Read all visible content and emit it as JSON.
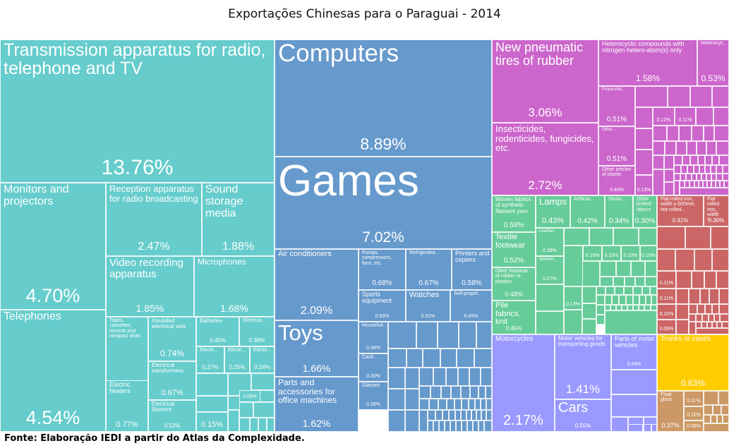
{
  "chart_data": {
    "type": "treemap",
    "title": "Exportações Chinesas para o Paraguai - 2014",
    "source": "Fonte: Elaboração IEDI a partir do Atlas da Complexidade.",
    "unit": "% of total exports",
    "colors": {
      "machinery": "#66cccc",
      "electronics": "#6699cc",
      "chemicals": "#cc66cc",
      "textiles": "#66cc99",
      "metals": "#cc6666",
      "vehicles": "#9999ff",
      "misc_yellow": "#ffcc00",
      "stone_glass": "#cc9966"
    },
    "items": [
      {
        "label": "Transmission apparatus for radio, telephone and TV",
        "value": 13.76,
        "group": "machinery"
      },
      {
        "label": "Monitors and projectors",
        "value": 4.7,
        "group": "machinery"
      },
      {
        "label": "Telephones",
        "value": 4.54,
        "group": "machinery"
      },
      {
        "label": "Reception apparatus for radio broadcasting",
        "value": 2.47,
        "group": "machinery"
      },
      {
        "label": "Sound storage media",
        "value": 1.88,
        "group": "machinery"
      },
      {
        "label": "Video recording apparatus",
        "value": 1.85,
        "group": "machinery"
      },
      {
        "label": "Microphones",
        "value": 1.68,
        "group": "machinery"
      },
      {
        "label": "Tapes, cassettes, records and compact disks",
        "value": 0.96,
        "group": "machinery"
      },
      {
        "label": "Electric heaters",
        "value": 0.77,
        "group": "machinery"
      },
      {
        "label": "Insulated electrical wire",
        "value": 0.74,
        "group": "machinery"
      },
      {
        "label": "Electrical transformers",
        "value": 0.67,
        "group": "machinery"
      },
      {
        "label": "Electrical filament",
        "value": 0.53,
        "group": "machinery"
      },
      {
        "label": "Batteries",
        "value": 0.45,
        "group": "machinery"
      },
      {
        "label": "Electrica...",
        "value": 0.38,
        "group": "machinery"
      },
      {
        "label": "Electri...",
        "value": 0.27,
        "group": "machinery"
      },
      {
        "label": "Electri...",
        "value": 0.25,
        "group": "machinery"
      },
      {
        "label": "Electri...",
        "value": 0.24,
        "group": "machinery"
      },
      {
        "label": "",
        "value": 0.15,
        "group": "machinery"
      },
      {
        "label": "",
        "value": 0.09,
        "group": "machinery"
      },
      {
        "label": "Computers",
        "value": 8.89,
        "group": "electronics"
      },
      {
        "label": "Games",
        "value": 7.02,
        "group": "electronics"
      },
      {
        "label": "Air conditioners",
        "value": 2.09,
        "group": "electronics"
      },
      {
        "label": "Toys",
        "value": 1.66,
        "group": "electronics"
      },
      {
        "label": "Parts and accessories for office machines",
        "value": 1.62,
        "group": "electronics"
      },
      {
        "label": "Pumps, compressors, fans, etc.",
        "value": 0.68,
        "group": "electronics"
      },
      {
        "label": "Refrigerator...",
        "value": 0.67,
        "group": "electronics"
      },
      {
        "label": "Printers and copiers",
        "value": 0.58,
        "group": "electronics"
      },
      {
        "label": "Sports equipment",
        "value": 0.53,
        "group": "electronics"
      },
      {
        "label": "Watches",
        "value": 0.51,
        "group": "electronics"
      },
      {
        "label": "Self-propel...",
        "value": 0.45,
        "group": "electronics"
      },
      {
        "label": "Househol...",
        "value": 0.34,
        "group": "electronics"
      },
      {
        "label": "Cash...",
        "value": 0.3,
        "group": "electronics"
      },
      {
        "label": "Glasses",
        "value": 0.28,
        "group": "electronics"
      },
      {
        "label": "New pneumatic tires of rubber",
        "value": 3.06,
        "group": "chemicals"
      },
      {
        "label": "Insecticides, rodenticides, fungicides, etc.",
        "value": 2.72,
        "group": "chemicals"
      },
      {
        "label": "Heterocyclic compounds with nitrogen hetero-atom(s) only",
        "value": 1.58,
        "group": "chemicals"
      },
      {
        "label": "Heterocyc...",
        "value": 0.53,
        "group": "chemicals"
      },
      {
        "label": "Polyacetal...",
        "value": 0.51,
        "group": "chemicals"
      },
      {
        "label": "Other...",
        "value": 0.51,
        "group": "chemicals"
      },
      {
        "label": "Other articles of plastic",
        "value": 0.4,
        "group": "chemicals"
      },
      {
        "label": "",
        "value": 0.13,
        "group": "chemicals"
      },
      {
        "label": "",
        "value": 0.12,
        "group": "chemicals"
      },
      {
        "label": "",
        "value": 0.11,
        "group": "chemicals"
      },
      {
        "label": "Woven fabrics of synthetic filament yarn",
        "value": 0.58,
        "group": "textiles"
      },
      {
        "label": "Textile footwear",
        "value": 0.52,
        "group": "textiles"
      },
      {
        "label": "Other footwear of rubber or plastics",
        "value": 0.48,
        "group": "textiles"
      },
      {
        "label": "Pile fabrics, knit",
        "value": 0.45,
        "group": "textiles"
      },
      {
        "label": "Lamps",
        "value": 0.43,
        "group": "textiles"
      },
      {
        "label": "Artificia...",
        "value": 0.42,
        "group": "textiles"
      },
      {
        "label": "Socks,...",
        "value": 0.34,
        "group": "textiles"
      },
      {
        "label": "Other knitted fabrics",
        "value": 0.3,
        "group": "textiles"
      },
      {
        "label": "Leather...",
        "value": 0.28,
        "group": "textiles"
      },
      {
        "label": "Women...",
        "value": 0.27,
        "group": "textiles"
      },
      {
        "label": "",
        "value": 0.13,
        "group": "textiles"
      },
      {
        "label": "",
        "value": 0.1,
        "group": "textiles"
      },
      {
        "label": "",
        "value": 0.1,
        "group": "textiles"
      },
      {
        "label": "",
        "value": 0.1,
        "group": "textiles"
      },
      {
        "label": "",
        "value": 0.1,
        "group": "textiles"
      },
      {
        "label": "Flat-rolled iron, width ≥ 600mm, hot-rolled...",
        "value": 0.41,
        "group": "metals"
      },
      {
        "label": "Flat rolled iron, width >...",
        "value": 0.3,
        "group": "metals"
      },
      {
        "label": "",
        "value": 0.11,
        "group": "metals"
      },
      {
        "label": "",
        "value": 0.11,
        "group": "metals"
      },
      {
        "label": "",
        "value": 0.1,
        "group": "metals"
      },
      {
        "label": "",
        "value": 0.09,
        "group": "metals"
      },
      {
        "label": "Motorcycles",
        "value": 2.17,
        "group": "vehicles"
      },
      {
        "label": "Motor vehicles for transporting goods",
        "value": 1.41,
        "group": "vehicles"
      },
      {
        "label": "Cars",
        "value": 0.55,
        "group": "vehicles"
      },
      {
        "label": "Parts of motor vehicles",
        "value": 0.44,
        "group": "vehicles"
      },
      {
        "label": "Trunks or cases",
        "value": 0.63,
        "group": "misc_yellow"
      },
      {
        "label": "Float glass",
        "value": 0.37,
        "group": "stone_glass"
      },
      {
        "label": "",
        "value": 0.11,
        "group": "stone_glass"
      },
      {
        "label": "",
        "value": 0.11,
        "group": "stone_glass"
      },
      {
        "label": "",
        "value": 0.08,
        "group": "stone_glass"
      }
    ]
  }
}
